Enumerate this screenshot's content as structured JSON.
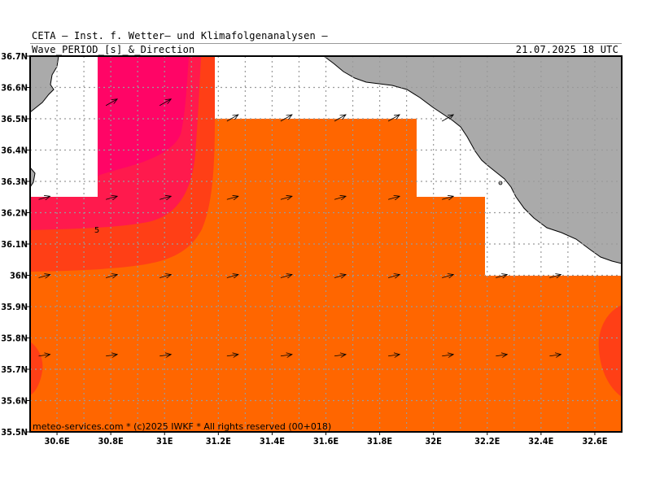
{
  "header": {
    "organization": "CETA — Inst. f. Wetter— und Klimafolgenanalysen —",
    "title": "Wave_PERIOD_[s]_&_Direction",
    "timestamp": "21.07.2025 18 UTC"
  },
  "footer": {
    "credit": "meteo-services.com * (c)2025 IWKF * All rights reserved (00+018)"
  },
  "contour_label": "5",
  "axes": {
    "lat_labels": [
      "36.7N",
      "36.6N",
      "36.5N",
      "36.4N",
      "36.3N",
      "36.2N",
      "36.1N",
      "36N",
      "35.9N",
      "35.8N",
      "35.7N",
      "35.6N",
      "35.5N"
    ],
    "lon_labels": [
      "30.6E",
      "30.8E",
      "31E",
      "31.2E",
      "31.4E",
      "31.6E",
      "31.8E",
      "32E",
      "32.2E",
      "32.4E",
      "32.6E"
    ]
  },
  "colors": {
    "land": "#aaaaaa",
    "orange": "#ff6600",
    "red_orange": "#ff3f16",
    "crimson": "#ff1a4d",
    "magenta": "#ff0566",
    "grid": "#9a9a9a"
  }
}
